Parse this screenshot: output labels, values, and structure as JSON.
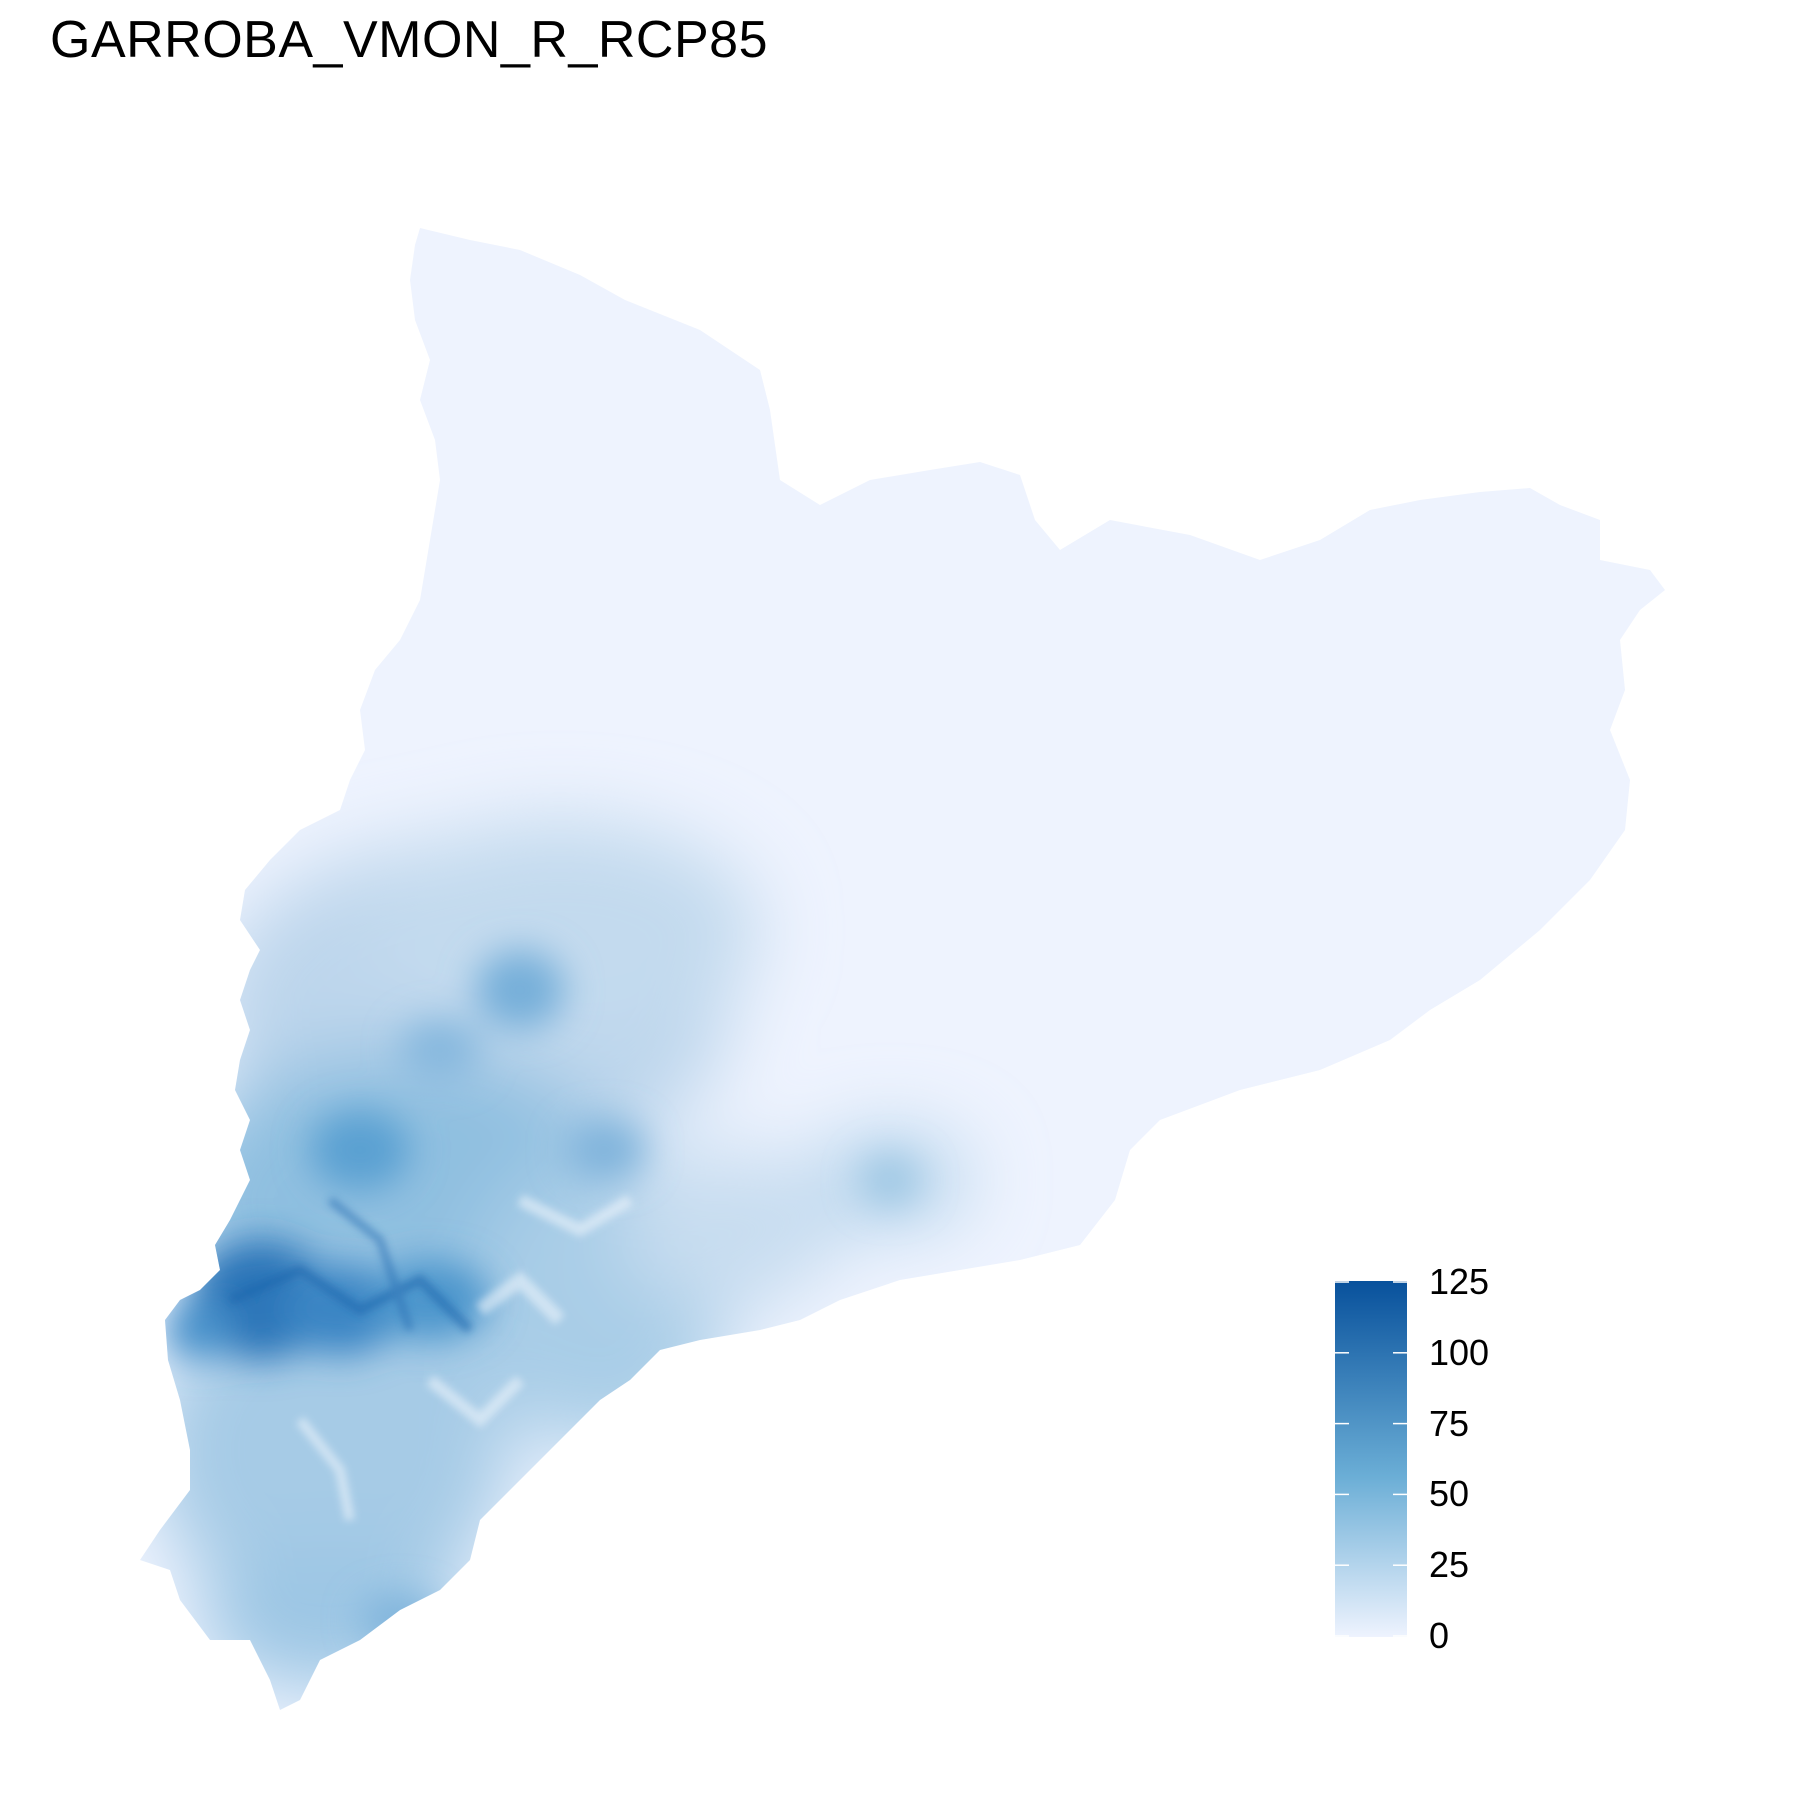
{
  "title": "GARROBA_VMON_R_RCP85",
  "legend": {
    "ticks": [
      "125",
      "100",
      "75",
      "50",
      "25",
      "0"
    ],
    "min": 0,
    "max": 125,
    "colors": {
      "low": "#eef3fe",
      "mid": "#6baed6",
      "high": "#08519c"
    }
  }
}
